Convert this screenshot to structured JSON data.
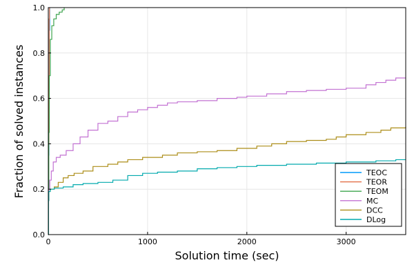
{
  "chart_data": {
    "type": "line",
    "title": "",
    "xlabel": "Solution time (sec)",
    "ylabel": "Fraction of solved instances",
    "xlim": [
      0,
      3600
    ],
    "ylim": [
      0,
      1
    ],
    "xticks": [
      0,
      1000,
      2000,
      3000
    ],
    "xtick_labels": [
      "0",
      "1000",
      "2000",
      "3000"
    ],
    "yticks": [
      0,
      0.2,
      0.4,
      0.6,
      0.8,
      1.0
    ],
    "ytick_labels": [
      "0.0",
      "0.2",
      "0.4",
      "0.6",
      "0.8",
      "1.0"
    ],
    "grid": true,
    "legend_position": "bottom-right",
    "series": [
      {
        "name": "TEOC",
        "color": "#009AFA",
        "points": [
          [
            0,
            0
          ],
          [
            1,
            0.12
          ],
          [
            3,
            0.35
          ],
          [
            6,
            0.62
          ],
          [
            10,
            0.9
          ],
          [
            14,
            1.0
          ]
        ]
      },
      {
        "name": "TEOR",
        "color": "#E36F47",
        "points": [
          [
            0,
            0
          ],
          [
            1,
            0.15
          ],
          [
            3,
            0.4
          ],
          [
            6,
            0.7
          ],
          [
            9,
            0.95
          ],
          [
            12,
            1.0
          ]
        ]
      },
      {
        "name": "TEOM",
        "color": "#3EA44E",
        "points": [
          [
            0,
            0
          ],
          [
            2,
            0.2
          ],
          [
            5,
            0.45
          ],
          [
            10,
            0.7
          ],
          [
            20,
            0.86
          ],
          [
            35,
            0.92
          ],
          [
            55,
            0.95
          ],
          [
            80,
            0.97
          ],
          [
            110,
            0.98
          ],
          [
            140,
            0.99
          ],
          [
            160,
            1.0
          ]
        ]
      },
      {
        "name": "MC",
        "color": "#C271D2",
        "points": [
          [
            0,
            0
          ],
          [
            2,
            0.15
          ],
          [
            5,
            0.2
          ],
          [
            15,
            0.24
          ],
          [
            30,
            0.28
          ],
          [
            50,
            0.32
          ],
          [
            80,
            0.34
          ],
          [
            120,
            0.35
          ],
          [
            180,
            0.37
          ],
          [
            250,
            0.4
          ],
          [
            320,
            0.43
          ],
          [
            400,
            0.46
          ],
          [
            500,
            0.49
          ],
          [
            600,
            0.5
          ],
          [
            700,
            0.52
          ],
          [
            800,
            0.54
          ],
          [
            900,
            0.55
          ],
          [
            1000,
            0.56
          ],
          [
            1100,
            0.57
          ],
          [
            1200,
            0.58
          ],
          [
            1300,
            0.585
          ],
          [
            1500,
            0.59
          ],
          [
            1700,
            0.6
          ],
          [
            1900,
            0.605
          ],
          [
            2000,
            0.61
          ],
          [
            2200,
            0.62
          ],
          [
            2400,
            0.63
          ],
          [
            2600,
            0.635
          ],
          [
            2800,
            0.64
          ],
          [
            3000,
            0.645
          ],
          [
            3200,
            0.66
          ],
          [
            3300,
            0.67
          ],
          [
            3400,
            0.68
          ],
          [
            3500,
            0.69
          ],
          [
            3600,
            0.69
          ]
        ]
      },
      {
        "name": "DCC",
        "color": "#AC8D18",
        "points": [
          [
            0,
            0
          ],
          [
            2,
            0.15
          ],
          [
            5,
            0.19
          ],
          [
            20,
            0.2
          ],
          [
            60,
            0.21
          ],
          [
            100,
            0.23
          ],
          [
            150,
            0.25
          ],
          [
            200,
            0.26
          ],
          [
            260,
            0.27
          ],
          [
            350,
            0.28
          ],
          [
            450,
            0.3
          ],
          [
            600,
            0.31
          ],
          [
            700,
            0.32
          ],
          [
            800,
            0.33
          ],
          [
            950,
            0.34
          ],
          [
            1150,
            0.35
          ],
          [
            1300,
            0.36
          ],
          [
            1500,
            0.365
          ],
          [
            1700,
            0.37
          ],
          [
            1900,
            0.38
          ],
          [
            2100,
            0.39
          ],
          [
            2250,
            0.4
          ],
          [
            2400,
            0.41
          ],
          [
            2600,
            0.415
          ],
          [
            2800,
            0.42
          ],
          [
            2900,
            0.43
          ],
          [
            3000,
            0.44
          ],
          [
            3200,
            0.45
          ],
          [
            3350,
            0.46
          ],
          [
            3450,
            0.47
          ],
          [
            3600,
            0.475
          ]
        ]
      },
      {
        "name": "DLog",
        "color": "#00A9AD",
        "points": [
          [
            0,
            0
          ],
          [
            2,
            0.15
          ],
          [
            5,
            0.19
          ],
          [
            20,
            0.2
          ],
          [
            60,
            0.205
          ],
          [
            150,
            0.21
          ],
          [
            250,
            0.22
          ],
          [
            350,
            0.225
          ],
          [
            500,
            0.23
          ],
          [
            650,
            0.24
          ],
          [
            800,
            0.26
          ],
          [
            950,
            0.27
          ],
          [
            1100,
            0.275
          ],
          [
            1300,
            0.28
          ],
          [
            1500,
            0.29
          ],
          [
            1700,
            0.295
          ],
          [
            1900,
            0.3
          ],
          [
            2100,
            0.305
          ],
          [
            2400,
            0.31
          ],
          [
            2700,
            0.315
          ],
          [
            3000,
            0.32
          ],
          [
            3300,
            0.325
          ],
          [
            3500,
            0.33
          ],
          [
            3600,
            0.33
          ]
        ]
      }
    ]
  }
}
